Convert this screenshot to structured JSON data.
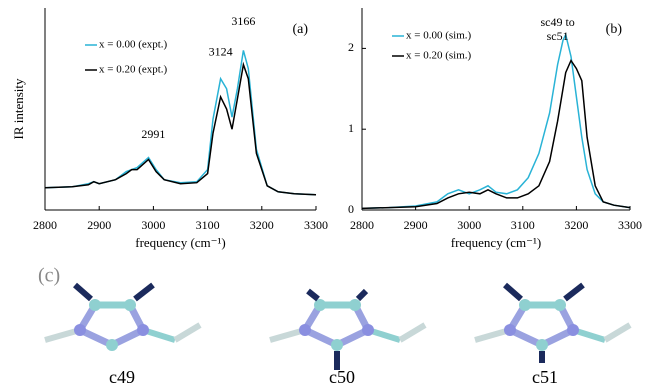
{
  "chart_data": [
    {
      "type": "line",
      "panel_label": "(a)",
      "y_label": "IR intensity",
      "x_label": "frequency (cm⁻¹)",
      "annotations": [
        "2991",
        "3124",
        "3166"
      ],
      "legend": "upper left",
      "x": [
        2800,
        2850,
        2880,
        2890,
        2900,
        2930,
        2950,
        2960,
        2970,
        2991,
        3005,
        3020,
        3050,
        3080,
        3100,
        3110,
        3124,
        3135,
        3145,
        3155,
        3166,
        3175,
        3190,
        3210,
        3230,
        3260,
        3300
      ],
      "series": [
        {
          "name": "x = 0.00 (expt.)",
          "color": "#29b3d6",
          "values": [
            0.11,
            0.115,
            0.13,
            0.14,
            0.13,
            0.15,
            0.19,
            0.2,
            0.21,
            0.26,
            0.2,
            0.15,
            0.135,
            0.14,
            0.2,
            0.45,
            0.65,
            0.6,
            0.46,
            0.6,
            0.79,
            0.7,
            0.3,
            0.12,
            0.09,
            0.08,
            0.075
          ]
        },
        {
          "name": "x = 0.20 (expt.)",
          "color": "#000000",
          "values": [
            0.11,
            0.115,
            0.125,
            0.14,
            0.13,
            0.15,
            0.18,
            0.2,
            0.2,
            0.25,
            0.19,
            0.15,
            0.13,
            0.135,
            0.18,
            0.38,
            0.56,
            0.5,
            0.4,
            0.55,
            0.72,
            0.65,
            0.28,
            0.12,
            0.09,
            0.08,
            0.075
          ]
        }
      ],
      "xlim": [
        2800,
        3300
      ],
      "xticks": [
        2800,
        2900,
        3000,
        3100,
        3200,
        3300
      ],
      "ylim": [
        0,
        1
      ]
    },
    {
      "type": "line",
      "panel_label": "(b)",
      "x_label": "frequency (cm⁻¹)",
      "annotations": [
        "sc49 to",
        "sc51"
      ],
      "legend": "upper left",
      "x": [
        2800,
        2850,
        2900,
        2940,
        2960,
        2980,
        3000,
        3020,
        3035,
        3050,
        3070,
        3090,
        3110,
        3130,
        3150,
        3165,
        3175,
        3180,
        3190,
        3200,
        3210,
        3220,
        3235,
        3250,
        3270,
        3300
      ],
      "series": [
        {
          "name": "x = 0.00 (sim.)",
          "color": "#29b3d6",
          "values": [
            0.02,
            0.03,
            0.05,
            0.1,
            0.2,
            0.25,
            0.2,
            0.25,
            0.3,
            0.22,
            0.2,
            0.25,
            0.4,
            0.7,
            1.2,
            1.8,
            2.1,
            2.17,
            1.9,
            1.4,
            0.9,
            0.5,
            0.2,
            0.1,
            0.06,
            0.03
          ]
        },
        {
          "name": "x = 0.20 (sim.)",
          "color": "#000000",
          "values": [
            0.02,
            0.03,
            0.04,
            0.08,
            0.15,
            0.2,
            0.22,
            0.2,
            0.25,
            0.2,
            0.15,
            0.15,
            0.2,
            0.3,
            0.6,
            1.1,
            1.5,
            1.7,
            1.85,
            1.75,
            1.6,
            0.9,
            0.3,
            0.1,
            0.06,
            0.03
          ]
        }
      ],
      "xlim": [
        2800,
        3300
      ],
      "xticks": [
        2800,
        2900,
        3000,
        3100,
        3200,
        3300
      ],
      "ylim": [
        0,
        2.5
      ],
      "yticks": [
        0,
        1,
        2
      ]
    }
  ],
  "panel_c": {
    "label": "(c)",
    "molecules": [
      "c49",
      "c50",
      "c51"
    ]
  }
}
